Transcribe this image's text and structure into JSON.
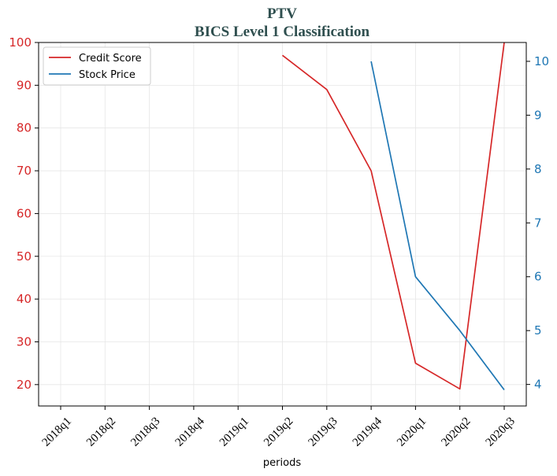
{
  "chart_data": {
    "type": "line",
    "title": "PTV",
    "subtitle": "BICS Level 1 Classification",
    "xlabel": "periods",
    "categories": [
      "2018q1",
      "2018q2",
      "2018q3",
      "2018q4",
      "2019q1",
      "2019q2",
      "2019q3",
      "2019q4",
      "2020q1",
      "2020q2",
      "2020q3"
    ],
    "y_left": {
      "ticks": [
        20,
        30,
        40,
        50,
        60,
        70,
        80,
        90,
        100
      ],
      "ylim": [
        15,
        100
      ],
      "color": "#d62728"
    },
    "y_right": {
      "ticks": [
        4,
        5,
        6,
        7,
        8,
        9,
        10
      ],
      "ylim": [
        3.6,
        10.35
      ],
      "color": "#1f77b4"
    },
    "series": [
      {
        "name": "Credit Score",
        "axis": "left",
        "color": "#d62728",
        "values": [
          null,
          null,
          null,
          null,
          null,
          97,
          89,
          70,
          25,
          19,
          100
        ]
      },
      {
        "name": "Stock Price",
        "axis": "right",
        "color": "#1f77b4",
        "values": [
          null,
          null,
          null,
          null,
          null,
          null,
          null,
          10.0,
          6.0,
          5.0,
          3.9
        ]
      }
    ],
    "grid": true,
    "legend": "top-left"
  }
}
